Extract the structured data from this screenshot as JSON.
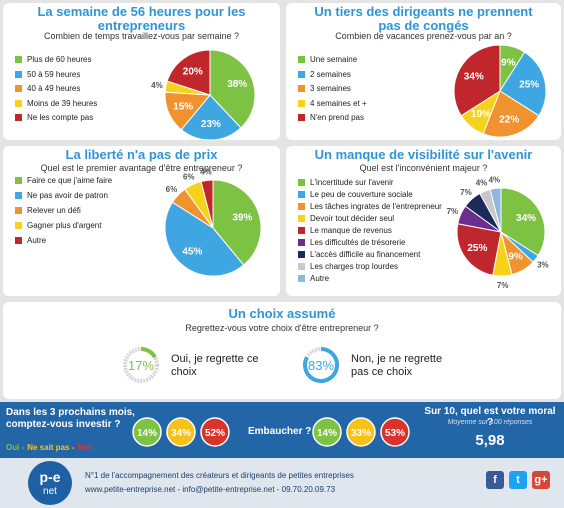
{
  "chart_data": [
    {
      "type": "pie",
      "title": "La semaine de 56 heures pour les entrepreneurs",
      "subtitle": "Combien de temps travaillez-vous par semaine ?",
      "categories": [
        "Plus de 60 heures",
        "50 à 59 heures",
        "40 à 49 heures",
        "Moins de 39 heures",
        "Ne les compte pas"
      ],
      "values": [
        38,
        23,
        15,
        4,
        20
      ],
      "value_labels": [
        "38%",
        "23%",
        "15%",
        "4%",
        "20%"
      ],
      "colors": [
        "#7dc242",
        "#3ea6e0",
        "#f0922d",
        "#f6d21a",
        "#c0272d"
      ]
    },
    {
      "type": "pie",
      "title": "Un tiers des dirigeants ne prennent pas de congés",
      "subtitle": "Combien de vacances prenez-vous par an ?",
      "categories": [
        "Une semaine",
        "2 semaines",
        "3 semaines",
        "4 semaines et +",
        "N'en prend pas"
      ],
      "values": [
        9,
        25,
        22,
        10,
        34
      ],
      "value_labels": [
        "9%",
        "25%",
        "22%",
        "10%",
        "34%"
      ],
      "colors": [
        "#7dc242",
        "#3ea6e0",
        "#f0922d",
        "#f6d21a",
        "#c0272d"
      ]
    },
    {
      "type": "pie",
      "title": "La liberté n'a pas de prix",
      "subtitle": "Quel est le premier avantage d'être entrepreneur ?",
      "categories": [
        "Faire ce que j'aime faire",
        "Ne pas avoir de patron",
        "Relever un défi",
        "Gagner plus d'argent",
        "Autre"
      ],
      "values": [
        39,
        45,
        6,
        6,
        4
      ],
      "value_labels": [
        "39%",
        "45%",
        "6%",
        "6%",
        "4%"
      ],
      "colors": [
        "#7dc242",
        "#3ea6e0",
        "#f0922d",
        "#f6d21a",
        "#c0272d"
      ]
    },
    {
      "type": "pie",
      "title": "Un manque de visibilité sur l'avenir",
      "subtitle": "Quel est l'inconvénient majeur ?",
      "categories": [
        "L'incertitude sur l'avenir",
        "Le peu de couverture sociale",
        "Les tâches ingrates de l'entrepreneur",
        "Devoir tout décider seul",
        "Le manque de revenus",
        "Les difficultés de trésorerie",
        "L'accès difficile au financement",
        "Les charges trop lourdes",
        "Autre"
      ],
      "values": [
        34,
        3,
        9,
        7,
        25,
        7,
        7,
        4,
        4
      ],
      "value_labels": [
        "34%",
        "3%",
        "9%",
        "7%",
        "25%",
        "7%",
        "7%",
        "4%",
        "4%"
      ],
      "colors": [
        "#7dc242",
        "#3ea6e0",
        "#f0922d",
        "#f6d21a",
        "#c0272d",
        "#6b2d8e",
        "#1b2a59",
        "#c8c8c8",
        "#8fb8e0"
      ]
    }
  ],
  "choice": {
    "title": "Un choix assumé",
    "subtitle": "Regrettez-vous votre choix d'être entrepreneur ?",
    "items": [
      {
        "value": 17,
        "value_label": "17%",
        "label": "Oui, je regrette ce choix",
        "color": "#7dc242"
      },
      {
        "value": 83,
        "value_label": "83%",
        "label": "Non, je ne regrette pas ce choix",
        "color": "#3ea6e0"
      }
    ]
  },
  "outlook": {
    "invest": {
      "question": "Dans les 3 prochains mois, comptez-vous investir ?",
      "values": [
        14,
        34,
        52
      ],
      "value_labels": [
        "14%",
        "34%",
        "52%"
      ]
    },
    "legend": [
      "Oui -",
      "Ne sait pas -",
      "Non"
    ],
    "colors": [
      "#7dc242",
      "#f6c21a",
      "#d9342b"
    ],
    "hire": {
      "question": "Embaucher ?",
      "values": [
        14,
        33,
        53
      ],
      "value_labels": [
        "14%",
        "33%",
        "53%"
      ]
    },
    "moral": {
      "question": "Sur 10, quel est votre moral ?",
      "note": "Moyenne sur 100 réponses",
      "value": 5.98,
      "value_label": "5,98"
    }
  },
  "footer": {
    "logo_top": "p-e",
    "logo_bottom": "net",
    "tagline": "N°1 de l'accompagnement des créateurs et dirigeants de petites entreprises",
    "contact": "www.petite-entreprise.net - info@petite-entreprise.net - 09.70.20.09.73",
    "social": [
      "f",
      "t",
      "g+"
    ]
  }
}
